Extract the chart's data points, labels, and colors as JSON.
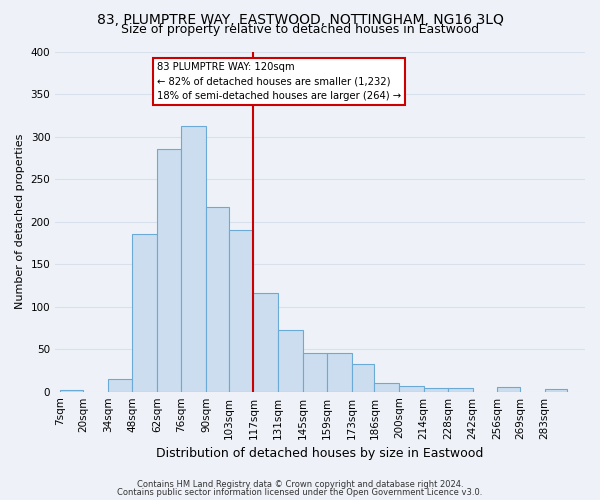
{
  "title": "83, PLUMPTRE WAY, EASTWOOD, NOTTINGHAM, NG16 3LQ",
  "subtitle": "Size of property relative to detached houses in Eastwood",
  "xlabel": "Distribution of detached houses by size in Eastwood",
  "ylabel": "Number of detached properties",
  "bin_labels": [
    "7sqm",
    "20sqm",
    "34sqm",
    "48sqm",
    "62sqm",
    "76sqm",
    "90sqm",
    "103sqm",
    "117sqm",
    "131sqm",
    "145sqm",
    "159sqm",
    "173sqm",
    "186sqm",
    "200sqm",
    "214sqm",
    "228sqm",
    "242sqm",
    "256sqm",
    "269sqm",
    "283sqm"
  ],
  "bar_heights": [
    2,
    0,
    15,
    185,
    285,
    312,
    217,
    190,
    116,
    72,
    45,
    45,
    32,
    10,
    7,
    4,
    4,
    0,
    5,
    0,
    3
  ],
  "bar_color": "#ccddf0",
  "bar_edge_color": "#6aaad4",
  "vline_color": "#cc0000",
  "annotation_title": "83 PLUMPTRE WAY: 120sqm",
  "annotation_line1": "← 82% of detached houses are smaller (1,232)",
  "annotation_line2": "18% of semi-detached houses are larger (264) →",
  "annotation_box_facecolor": "#ffffff",
  "annotation_box_edgecolor": "#cc0000",
  "footer1": "Contains HM Land Registry data © Crown copyright and database right 2024.",
  "footer2": "Contains public sector information licensed under the Open Government Licence v3.0.",
  "bg_color": "#eef2f8",
  "grid_color": "#d8e0ec",
  "title_fontsize": 10,
  "subtitle_fontsize": 9,
  "ylabel_fontsize": 8,
  "xlabel_fontsize": 9,
  "tick_fontsize": 7.5,
  "footer_fontsize": 6,
  "ylim": [
    0,
    400
  ],
  "bin_edges": [
    7,
    20,
    34,
    48,
    62,
    76,
    90,
    103,
    117,
    131,
    145,
    159,
    173,
    186,
    200,
    214,
    228,
    242,
    256,
    269,
    283,
    296
  ],
  "vline_x": 117
}
